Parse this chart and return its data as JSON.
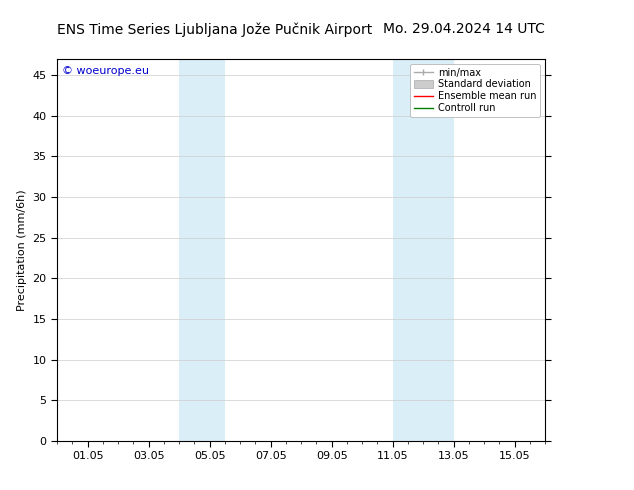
{
  "title_left": "ENS Time Series Ljubljana Jože Pučnik Airport",
  "title_right": "Mo. 29.04.2024 14 UTC",
  "ylabel": "Precipitation (mm/6h)",
  "xlim_labels": [
    "01.05",
    "03.05",
    "05.05",
    "07.05",
    "09.05",
    "11.05",
    "13.05",
    "15.05"
  ],
  "ylim": [
    0,
    47
  ],
  "yticks": [
    0,
    5,
    10,
    15,
    20,
    25,
    30,
    35,
    40,
    45
  ],
  "bg_color": "#ffffff",
  "plot_bg_color": "#ffffff",
  "band_color": "#daeef8",
  "legend_items": [
    {
      "label": "min/max",
      "color": "#aaaaaa"
    },
    {
      "label": "Standard deviation",
      "color": "#cccccc"
    },
    {
      "label": "Ensemble mean run",
      "color": "#ff0000"
    },
    {
      "label": "Controll run",
      "color": "#008000"
    }
  ],
  "watermark": "© woeurope.eu",
  "watermark_color": "#0000cc",
  "grid_color": "#cccccc",
  "font_size": 8,
  "title_font_size": 10,
  "x_tick_positions": [
    2,
    4,
    6,
    8,
    10,
    12,
    14,
    16
  ],
  "x_min": 1.0,
  "x_max": 17.0,
  "band1_start": 5.0,
  "band1_end": 6.5,
  "band2_start": 12.0,
  "band2_end": 14.0
}
